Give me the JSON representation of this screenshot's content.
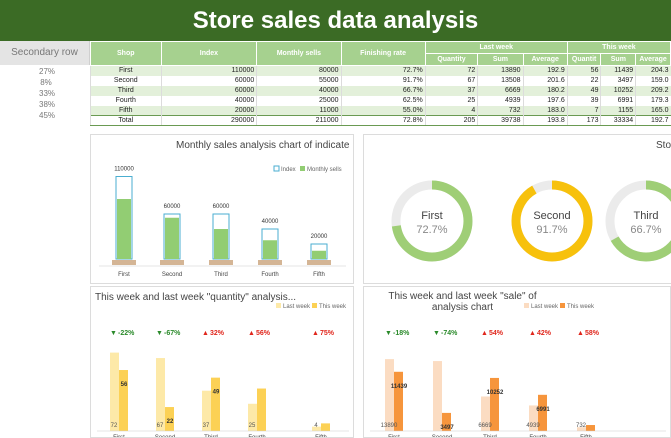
{
  "title": "Store sales data analysis",
  "secondary_row": {
    "header": "Secondary row",
    "values": [
      "27%",
      "8%",
      "33%",
      "38%",
      "45%"
    ]
  },
  "table": {
    "headers": {
      "shop": "Shop",
      "index": "Index",
      "monthly": "Monthly sells",
      "finishing": "Finishing rate",
      "last_week": "Last week",
      "this_week": "This week",
      "quantity": "Quantity",
      "sum": "Sum",
      "average": "Average",
      "quantity_short": "Quantit"
    },
    "rows": [
      {
        "shop": "First",
        "index": "110000",
        "monthly": "80000",
        "rate": "72.7%",
        "lq": "72",
        "ls": "13890",
        "la": "192.9",
        "tq": "56",
        "ts": "11439",
        "ta": "204.3"
      },
      {
        "shop": "Second",
        "index": "60000",
        "monthly": "55000",
        "rate": "91.7%",
        "lq": "67",
        "ls": "13508",
        "la": "201.6",
        "tq": "22",
        "ts": "3497",
        "ta": "159.0"
      },
      {
        "shop": "Third",
        "index": "60000",
        "monthly": "40000",
        "rate": "66.7%",
        "lq": "37",
        "ls": "6669",
        "la": "180.2",
        "tq": "49",
        "ts": "10252",
        "ta": "209.2"
      },
      {
        "shop": "Fourth",
        "index": "40000",
        "monthly": "25000",
        "rate": "62.5%",
        "lq": "25",
        "ls": "4939",
        "la": "197.6",
        "tq": "39",
        "ts": "6991",
        "ta": "179.3"
      },
      {
        "shop": "Fifth",
        "index": "20000",
        "monthly": "11000",
        "rate": "55.0%",
        "lq": "4",
        "ls": "732",
        "la": "183.0",
        "tq": "7",
        "ts": "1155",
        "ta": "165.0"
      },
      {
        "shop": "Total",
        "index": "290000",
        "monthly": "211000",
        "rate": "72.8%",
        "lq": "205",
        "ls": "39738",
        "la": "193.8",
        "tq": "173",
        "ts": "33334",
        "ta": "192.7"
      }
    ]
  },
  "colors": {
    "header_green": "#3b6b25",
    "table_head": "#a6d18f",
    "index_outline": "#4aaed0",
    "monthly_fill": "#92cd73",
    "ring_green": "#9fce76",
    "ring_yellow": "#f7c10c",
    "last_week_q": "#fde9a8",
    "this_week_q": "#fcd155",
    "last_week_s": "#fbdcc2",
    "this_week_s": "#f6953c",
    "down_arrow": "#2a8a2a",
    "up_arrow": "#e0251b"
  },
  "panels": {
    "monthly_title": "Monthly sales analysis chart of indicate",
    "rate_title": "Sto",
    "quantity_title": "This week and last week \"quantity\" analysis...",
    "sale_title": "This week and last week \"sale\" of analysis chart"
  },
  "chart_data": [
    {
      "type": "bar",
      "title": "Monthly sales analysis chart of indicate",
      "categories": [
        "First",
        "Second",
        "Third",
        "Fourth",
        "Fifth"
      ],
      "series": [
        {
          "name": "Index",
          "values": [
            110000,
            60000,
            60000,
            40000,
            20000
          ]
        },
        {
          "name": "Monthly sells",
          "values": [
            80000,
            55000,
            40000,
            25000,
            11000
          ]
        }
      ],
      "data_labels": [
        "110000",
        "60000",
        "60000",
        "40000",
        "20000"
      ],
      "ylim": [
        0,
        120000
      ]
    },
    {
      "type": "pie",
      "title": "Sto",
      "rings": [
        {
          "label": "First",
          "value": 72.7,
          "text": "72.7%"
        },
        {
          "label": "Second",
          "value": 91.7,
          "text": "91.7%"
        },
        {
          "label": "Third",
          "value": 66.7,
          "text": "66.7%"
        }
      ]
    },
    {
      "type": "bar",
      "title": "This week and last week \"quantity\" analysis...",
      "categories": [
        "First",
        "Second",
        "Third",
        "Fourth",
        "Fifth"
      ],
      "series": [
        {
          "name": "Last week",
          "values": [
            72,
            67,
            37,
            25,
            4
          ]
        },
        {
          "name": "This week",
          "values": [
            56,
            22,
            49,
            39,
            7
          ]
        }
      ],
      "changes": [
        "-22%",
        "-67%",
        "32%",
        "56%",
        "75%"
      ],
      "last_labels": [
        "72",
        "67",
        "37",
        "25",
        "4"
      ],
      "this_labels": [
        "56",
        "22",
        "49",
        "",
        ""
      ],
      "ylim": [
        0,
        90
      ]
    },
    {
      "type": "bar",
      "title": "This week and last week \"sale\" of analysis chart",
      "categories": [
        "First",
        "Second",
        "Third",
        "Fourth",
        "Fifth"
      ],
      "series": [
        {
          "name": "Last week",
          "values": [
            13890,
            13508,
            6669,
            4939,
            732
          ]
        },
        {
          "name": "This week",
          "values": [
            11439,
            3497,
            10252,
            6991,
            1155
          ]
        }
      ],
      "changes": [
        "-18%",
        "-74%",
        "54%",
        "42%",
        "58%"
      ],
      "last_labels": [
        "13890",
        "",
        "6669",
        "4939",
        "732"
      ],
      "this_labels": [
        "11439",
        "3497",
        "10252",
        "6991",
        "1155"
      ],
      "ylim": [
        0,
        17000
      ]
    }
  ]
}
